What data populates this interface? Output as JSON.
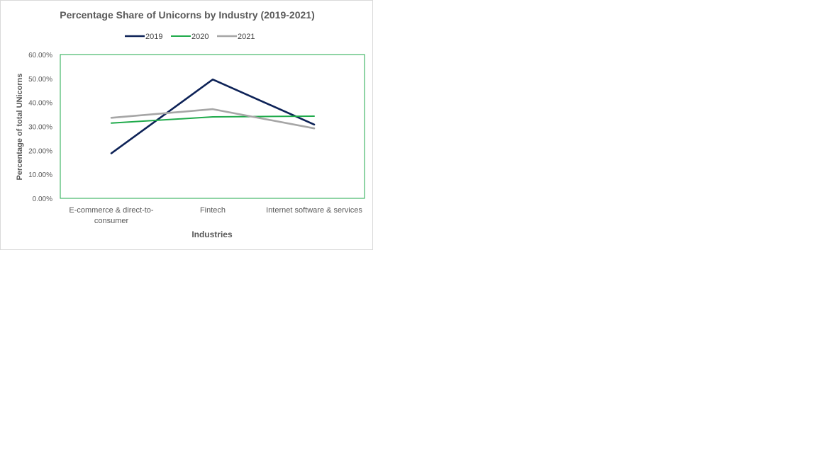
{
  "chart_data": {
    "type": "line",
    "title": "Percentage Share of Unicorns by Industry (2019-2021)",
    "xlabel": "Industries",
    "ylabel": "Percentage of total UNicorns",
    "categories": [
      [
        "E-commerce & direct-to-",
        "consumer"
      ],
      [
        "Fintech"
      ],
      [
        "Internet software & services"
      ]
    ],
    "ylim": [
      0,
      60
    ],
    "yticks": [
      "0.00%",
      "10.00%",
      "20.00%",
      "30.00%",
      "40.00%",
      "50.00%",
      "60.00%"
    ],
    "grid": false,
    "legend_position": "top",
    "series": [
      {
        "name": "2019",
        "color": "#0d2257",
        "values": [
          18.8,
          49.6,
          30.8
        ]
      },
      {
        "name": "2020",
        "color": "#1faa4b",
        "values": [
          31.4,
          34.0,
          34.3
        ]
      },
      {
        "name": "2021",
        "color": "#a6a6a6",
        "values": [
          33.6,
          37.2,
          29.2
        ]
      }
    ],
    "plot_border_color": "#1faa4b"
  }
}
